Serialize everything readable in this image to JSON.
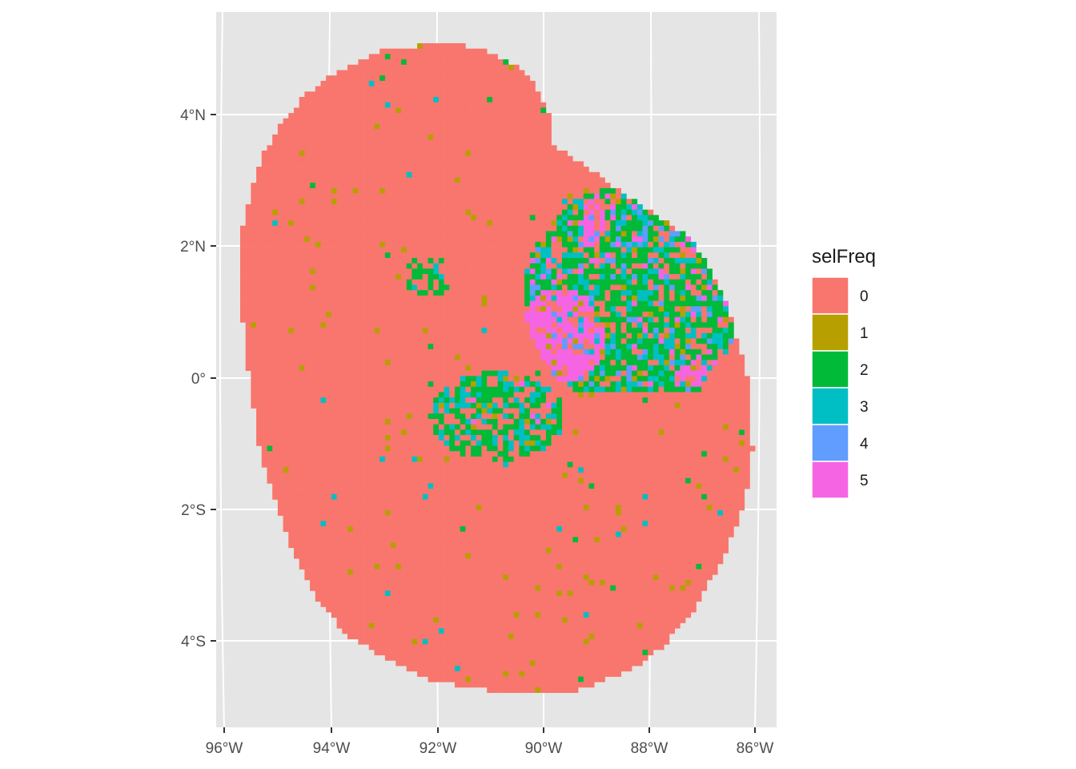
{
  "map": {
    "type": "raster",
    "x_ticks": [
      "96°W",
      "94°W",
      "92°W",
      "90°W",
      "88°W",
      "86°W"
    ],
    "y_ticks": [
      "4°N",
      "2°N",
      "0°",
      "2°S",
      "4°S"
    ],
    "legend": {
      "title": "selFreq",
      "placement": "right",
      "entries": [
        {
          "label": "0",
          "color": "#F8766D"
        },
        {
          "label": "1",
          "color": "#B79F00"
        },
        {
          "label": "2",
          "color": "#00BA38"
        },
        {
          "label": "3",
          "color": "#00BFC4"
        },
        {
          "label": "4",
          "color": "#619CFF"
        },
        {
          "label": "5",
          "color": "#F564E3"
        }
      ]
    },
    "panel_background": "#E5E5E5",
    "grid_color": "#FFFFFF",
    "fill_main": "#F8766D"
  }
}
